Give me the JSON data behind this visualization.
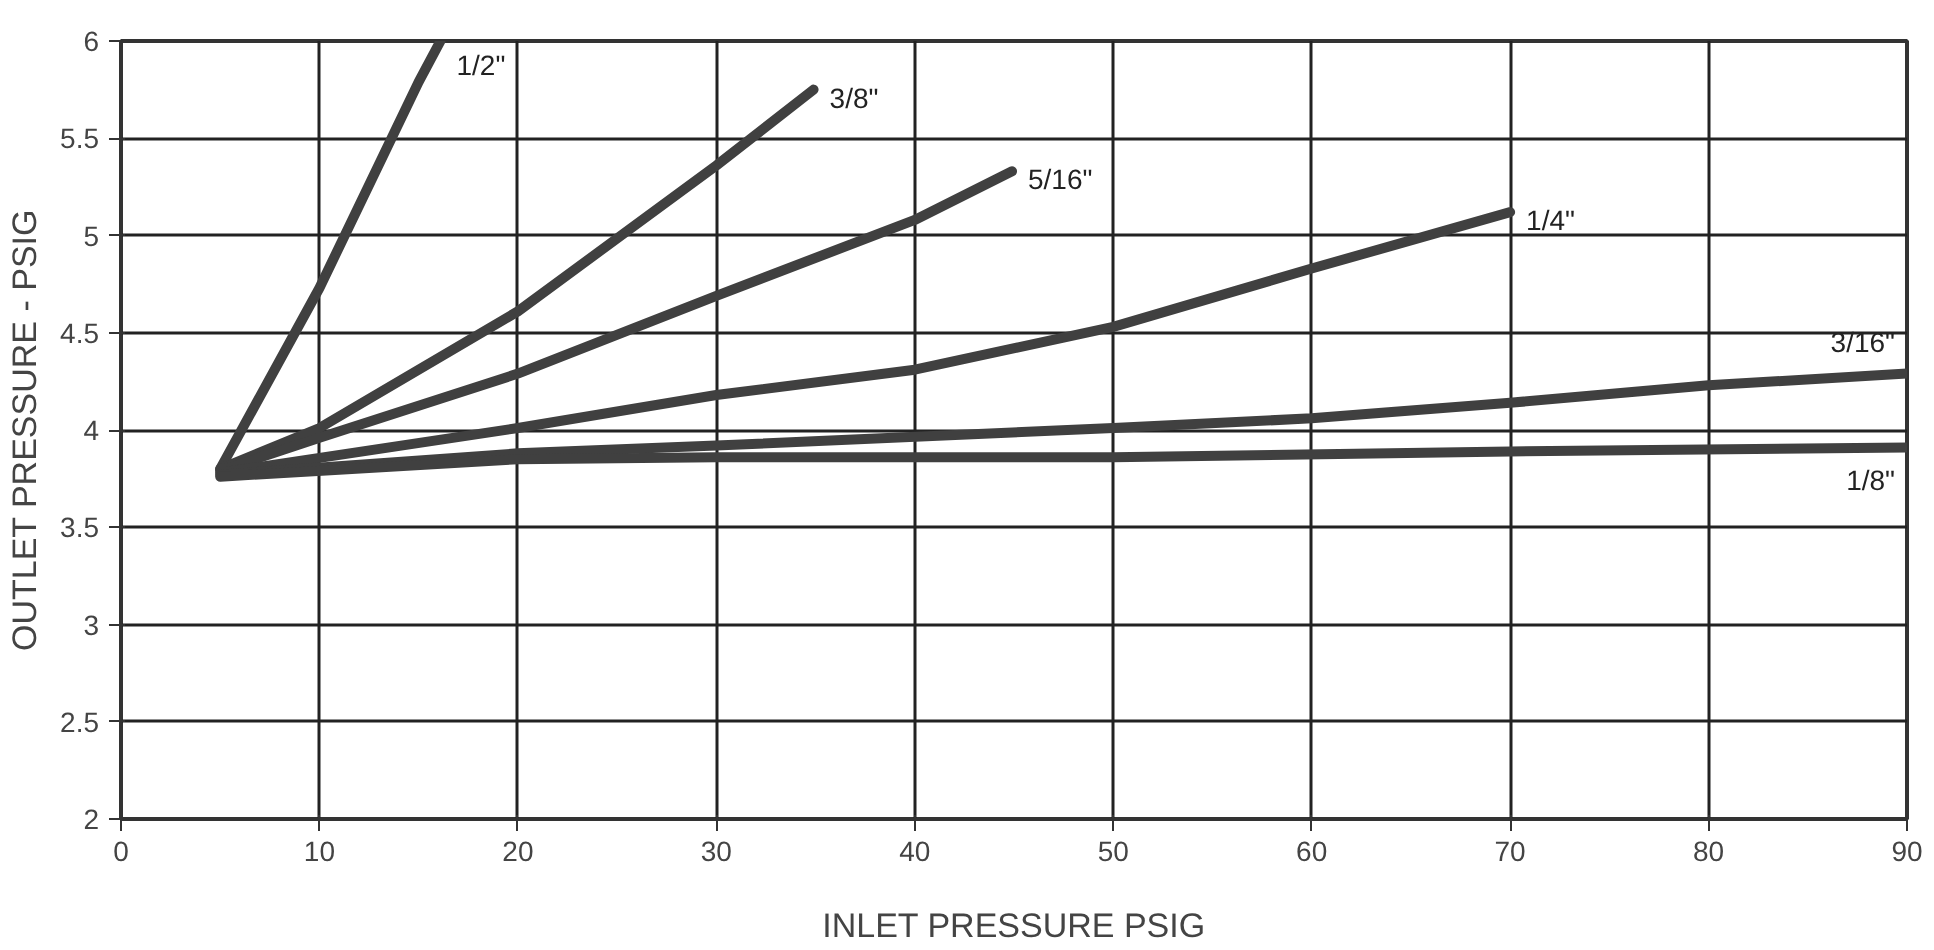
{
  "chart_data": {
    "type": "line",
    "xlabel": "INLET PRESSURE PSIG",
    "ylabel": "OUTLET PRESSURE - PSIG",
    "xlim": [
      0,
      90
    ],
    "ylim": [
      2,
      6
    ],
    "xticks": [
      0,
      10,
      20,
      30,
      40,
      50,
      60,
      70,
      80,
      90
    ],
    "yticks": [
      2,
      2.5,
      3,
      3.5,
      4,
      4.5,
      5,
      5.5,
      6
    ],
    "grid": true,
    "marker": "none",
    "line_style": "solid",
    "series": [
      {
        "name": "1/2\"",
        "color": "#404040",
        "x": [
          5,
          10,
          15,
          16.1
        ],
        "values": [
          3.8,
          4.73,
          5.79,
          6.0
        ]
      },
      {
        "name": "3/8\"",
        "color": "#404040",
        "x": [
          5,
          10,
          20,
          30,
          34.9
        ],
        "values": [
          3.8,
          4.01,
          4.61,
          5.36,
          5.75
        ]
      },
      {
        "name": "5/16\"",
        "color": "#404040",
        "x": [
          5,
          10,
          20,
          30,
          40,
          44.9
        ],
        "values": [
          3.79,
          3.96,
          4.29,
          4.69,
          5.08,
          5.33
        ]
      },
      {
        "name": "1/4\"",
        "color": "#404040",
        "x": [
          5,
          20,
          30,
          40,
          50,
          60,
          70
        ],
        "values": [
          3.78,
          4.01,
          4.18,
          4.31,
          4.53,
          4.83,
          5.12
        ]
      },
      {
        "name": "3/16\"",
        "color": "#404040",
        "x": [
          5,
          20,
          30,
          50,
          60,
          70,
          80,
          90
        ],
        "values": [
          3.77,
          3.88,
          3.92,
          4.01,
          4.06,
          4.14,
          4.23,
          4.29
        ]
      },
      {
        "name": "1/8\"",
        "color": "#404040",
        "x": [
          5,
          20,
          30,
          50,
          70,
          90
        ],
        "values": [
          3.76,
          3.85,
          3.86,
          3.86,
          3.89,
          3.91
        ]
      }
    ]
  }
}
